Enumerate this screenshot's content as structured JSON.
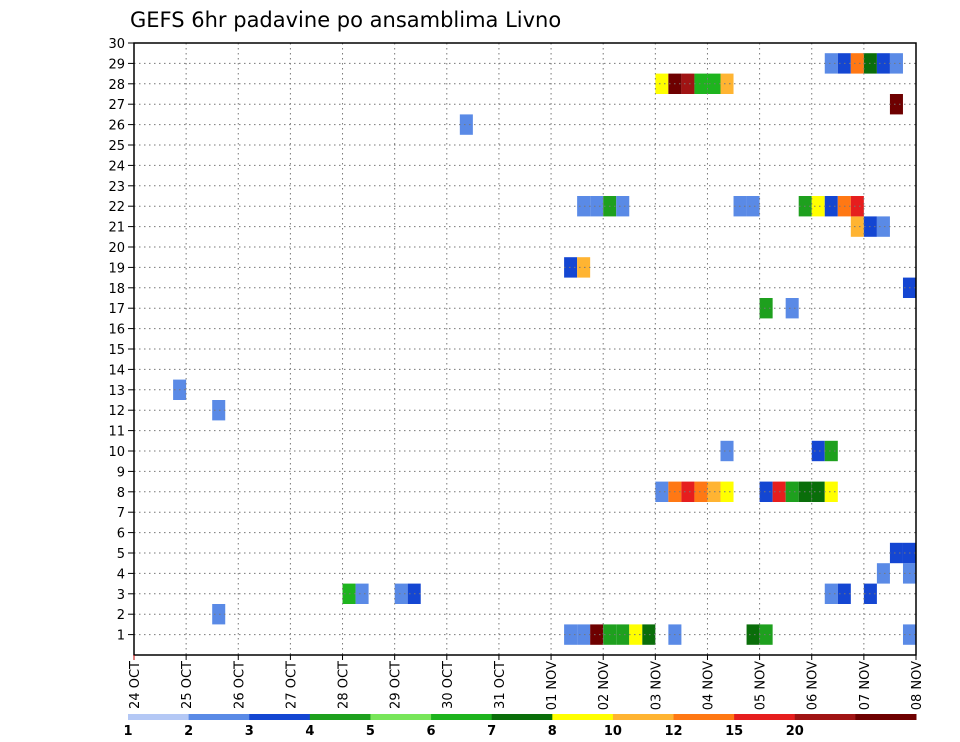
{
  "chart_data": {
    "type": "heatmap",
    "title": "GEFS 6hr padavine po ansamblima Livno",
    "x_labels": [
      "24 OCT",
      "25 OCT",
      "26 OCT",
      "27 OCT",
      "28 OCT",
      "29 OCT",
      "30 OCT",
      "31 OCT",
      "01 NOV",
      "02 NOV",
      "03 NOV",
      "04 NOV",
      "05 NOV",
      "06 NOV",
      "07 NOV",
      "08 NOV"
    ],
    "y_ticks": [
      1,
      2,
      3,
      4,
      5,
      6,
      7,
      8,
      9,
      10,
      11,
      12,
      13,
      14,
      15,
      16,
      17,
      18,
      19,
      20,
      21,
      22,
      23,
      24,
      25,
      26,
      27,
      28,
      29,
      30
    ],
    "xlim_steps": [
      0,
      60
    ],
    "ylim": [
      0,
      30
    ],
    "grid": true,
    "legend": {
      "position": "bottom",
      "labels": [
        "1",
        "2",
        "3",
        "4",
        "5",
        "6",
        "7",
        "8",
        "10",
        "12",
        "15",
        "20"
      ],
      "colors": [
        "#b4c8f5",
        "#5a8ae6",
        "#1446d2",
        "#1ea01e",
        "#78e65a",
        "#1eb41e",
        "#0a6e0a",
        "#ffff00",
        "#ffb432",
        "#ff7814",
        "#e61e1e",
        "#a01414",
        "#6e0000"
      ]
    },
    "cells": [
      {
        "m": 1,
        "t": 34,
        "v": 1.5
      },
      {
        "m": 1,
        "t": 35,
        "v": 1.5
      },
      {
        "m": 1,
        "t": 36,
        "v": 25
      },
      {
        "m": 1,
        "t": 37,
        "v": 3
      },
      {
        "m": 1,
        "t": 38,
        "v": 3
      },
      {
        "m": 1,
        "t": 39,
        "v": 7
      },
      {
        "m": 1,
        "t": 40,
        "v": 6
      },
      {
        "m": 1,
        "t": 42,
        "v": 1.5
      },
      {
        "m": 1,
        "t": 48,
        "v": 6
      },
      {
        "m": 1,
        "t": 49,
        "v": 3
      },
      {
        "m": 1,
        "t": 60,
        "v": 1.5
      },
      {
        "m": 2,
        "t": 7,
        "v": 1.5
      },
      {
        "m": 3,
        "t": 17,
        "v": 5
      },
      {
        "m": 3,
        "t": 18,
        "v": 1.5
      },
      {
        "m": 3,
        "t": 21,
        "v": 1.5
      },
      {
        "m": 3,
        "t": 22,
        "v": 2
      },
      {
        "m": 3,
        "t": 54,
        "v": 1.5
      },
      {
        "m": 3,
        "t": 55,
        "v": 2
      },
      {
        "m": 3,
        "t": 57,
        "v": 2
      },
      {
        "m": 4,
        "t": 58,
        "v": 1.5
      },
      {
        "m": 4,
        "t": 60,
        "v": 1.5
      },
      {
        "m": 5,
        "t": 59,
        "v": 2
      },
      {
        "m": 5,
        "t": 60,
        "v": 2
      },
      {
        "m": 8,
        "t": 41,
        "v": 1.5
      },
      {
        "m": 8,
        "t": 42,
        "v": 10
      },
      {
        "m": 8,
        "t": 43,
        "v": 12
      },
      {
        "m": 8,
        "t": 44,
        "v": 10
      },
      {
        "m": 8,
        "t": 45,
        "v": 8
      },
      {
        "m": 8,
        "t": 46,
        "v": 7
      },
      {
        "m": 8,
        "t": 49,
        "v": 2
      },
      {
        "m": 8,
        "t": 50,
        "v": 12
      },
      {
        "m": 8,
        "t": 51,
        "v": 3
      },
      {
        "m": 8,
        "t": 52,
        "v": 6
      },
      {
        "m": 8,
        "t": 53,
        "v": 6
      },
      {
        "m": 8,
        "t": 54,
        "v": 7
      },
      {
        "m": 10,
        "t": 46,
        "v": 1.5
      },
      {
        "m": 10,
        "t": 53,
        "v": 2
      },
      {
        "m": 10,
        "t": 54,
        "v": 3
      },
      {
        "m": 12,
        "t": 7,
        "v": 1.5
      },
      {
        "m": 13,
        "t": 4,
        "v": 1.5
      },
      {
        "m": 17,
        "t": 49,
        "v": 3
      },
      {
        "m": 17,
        "t": 51,
        "v": 1.5
      },
      {
        "m": 18,
        "t": 60,
        "v": 2
      },
      {
        "m": 19,
        "t": 34,
        "v": 2
      },
      {
        "m": 19,
        "t": 35,
        "v": 8
      },
      {
        "m": 21,
        "t": 56,
        "v": 8
      },
      {
        "m": 21,
        "t": 57,
        "v": 2
      },
      {
        "m": 21,
        "t": 58,
        "v": 1.5
      },
      {
        "m": 22,
        "t": 35,
        "v": 1.5
      },
      {
        "m": 22,
        "t": 36,
        "v": 1.5
      },
      {
        "m": 22,
        "t": 37,
        "v": 3
      },
      {
        "m": 22,
        "t": 38,
        "v": 1.5
      },
      {
        "m": 22,
        "t": 47,
        "v": 1.5
      },
      {
        "m": 22,
        "t": 48,
        "v": 1.5
      },
      {
        "m": 22,
        "t": 52,
        "v": 3
      },
      {
        "m": 22,
        "t": 53,
        "v": 7
      },
      {
        "m": 22,
        "t": 54,
        "v": 2
      },
      {
        "m": 22,
        "t": 55,
        "v": 10
      },
      {
        "m": 22,
        "t": 56,
        "v": 12
      },
      {
        "m": 26,
        "t": 26,
        "v": 1.5
      },
      {
        "m": 27,
        "t": 59,
        "v": 25
      },
      {
        "m": 28,
        "t": 41,
        "v": 7
      },
      {
        "m": 28,
        "t": 42,
        "v": 20
      },
      {
        "m": 28,
        "t": 43,
        "v": 15
      },
      {
        "m": 28,
        "t": 44,
        "v": 5
      },
      {
        "m": 28,
        "t": 45,
        "v": 5
      },
      {
        "m": 28,
        "t": 46,
        "v": 8
      },
      {
        "m": 29,
        "t": 54,
        "v": 1.5
      },
      {
        "m": 29,
        "t": 55,
        "v": 2
      },
      {
        "m": 29,
        "t": 56,
        "v": 10
      },
      {
        "m": 29,
        "t": 57,
        "v": 6
      },
      {
        "m": 29,
        "t": 58,
        "v": 2
      },
      {
        "m": 29,
        "t": 59,
        "v": 1.5
      }
    ]
  }
}
